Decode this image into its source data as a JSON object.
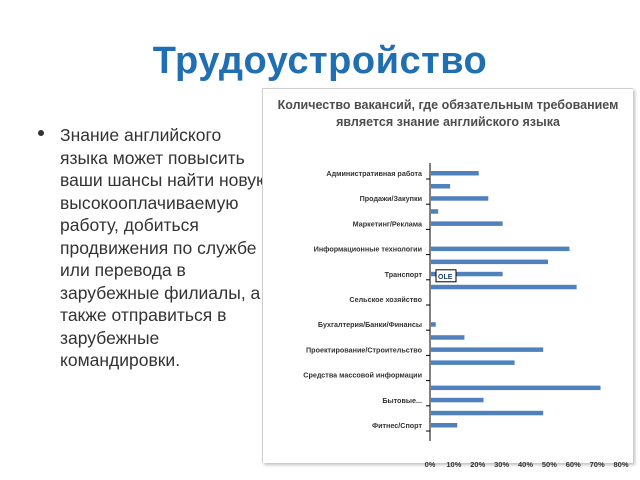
{
  "slide": {
    "title": "Трудоустройство",
    "bullet": "Знание английского языка может повысить ваши шансы найти новую высокооплачиваемую работу, добиться продвижения по службе или перевода в зарубежные филиалы, а также отправиться в зарубежные командировки."
  },
  "chart_data": {
    "type": "bar",
    "orientation": "horizontal",
    "title": "Количество вакансий, где обязательным требованием является знание английского языка",
    "categories": [
      "Административная работа",
      "Продажи/Закупки",
      "Маркетинг/Реклама",
      "Информационные технологии",
      "Транспорт",
      "Сельское хозяйство",
      "Бухгалтерия/Банки/Финансы",
      "Проектирование/Строительство",
      "Средства массовой информации",
      "Бытовые...",
      "Фитнес/Спорт"
    ],
    "series": [
      {
        "values": [
          0.2,
          0.24,
          0.3,
          0.58,
          0.3,
          0,
          0.02,
          0.47,
          0,
          0.22,
          0.11
        ]
      },
      {
        "values": [
          0.08,
          0.03,
          0,
          0.49,
          0.61,
          0,
          0.14,
          0.35,
          0.71,
          0.47,
          0
        ]
      }
    ],
    "x_ticks": [
      "0%",
      "10%",
      "20%",
      "30%",
      "40%",
      "50%",
      "60%",
      "70%",
      "80%"
    ],
    "xlim": [
      0,
      0.8
    ],
    "bar_color": "#4f81bd",
    "grid": false,
    "inline_label": "OLE"
  }
}
